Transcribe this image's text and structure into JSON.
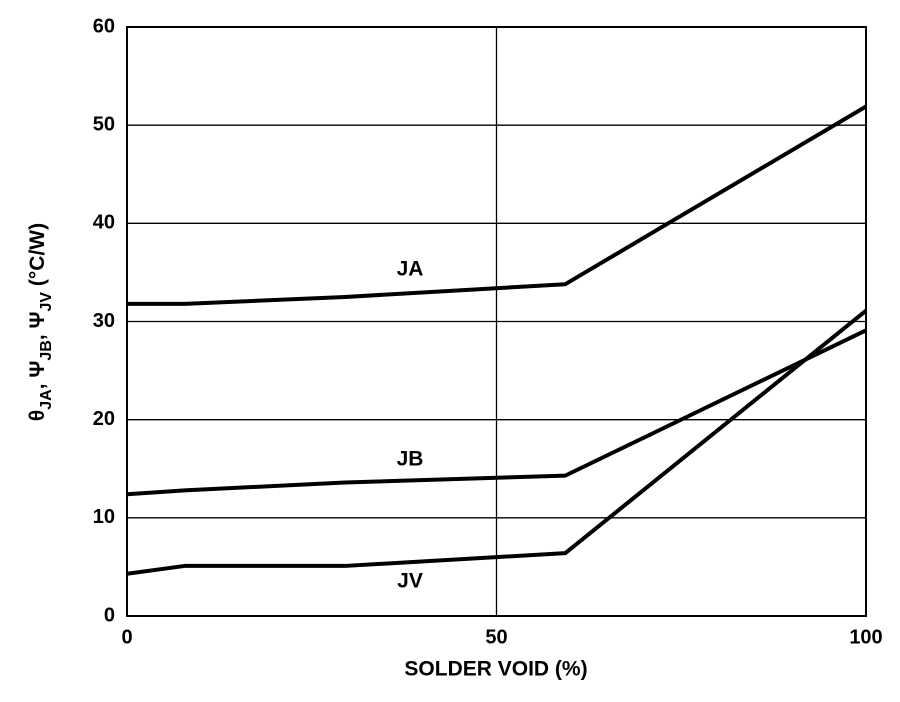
{
  "chart_data": {
    "type": "line",
    "x_label": "SOLDER VOID (%)",
    "y_label": [
      {
        "text": "θ"
      },
      {
        "text": "JA",
        "sub": true
      },
      {
        "text": ", Ψ"
      },
      {
        "text": "JB",
        "sub": true
      },
      {
        "text": ", Ψ"
      },
      {
        "text": "JV",
        "sub": true
      },
      {
        "text": " (°C/W)"
      }
    ],
    "x": [
      0,
      7.8,
      29.5,
      59.3,
      100
    ],
    "series": [
      {
        "name": "JA",
        "color": "#000000",
        "values": [
          31.8,
          31.8,
          32.5,
          33.8,
          51.9
        ]
      },
      {
        "name": "JB",
        "color": "#000000",
        "values": [
          12.4,
          12.8,
          13.6,
          14.3,
          29.1
        ]
      },
      {
        "name": "JV",
        "color": "#000000",
        "values": [
          4.3,
          5.1,
          5.1,
          6.4,
          31.1
        ]
      }
    ],
    "xlim": [
      0,
      100
    ],
    "ylim": [
      0,
      60
    ],
    "xticks": [
      0,
      50,
      100
    ],
    "yticks": [
      0,
      10,
      20,
      30,
      40,
      50,
      60
    ],
    "grid": true
  }
}
